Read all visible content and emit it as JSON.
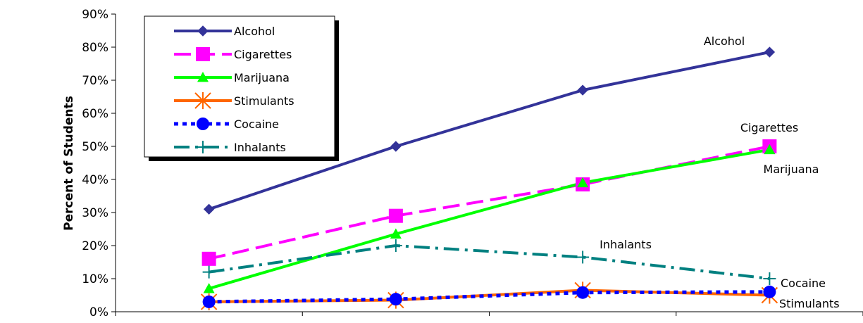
{
  "chart_data": {
    "type": "line",
    "ylabel": "Percent of Students",
    "xlabel": "",
    "ylim": [
      0,
      90
    ],
    "y_ticks": [
      "0%",
      "10%",
      "20%",
      "30%",
      "40%",
      "50%",
      "60%",
      "70%",
      "80%",
      "90%"
    ],
    "categories": [
      "",
      "",
      "",
      ""
    ],
    "grid": false,
    "legend_position": "top-left",
    "series": [
      {
        "name": "Alcohol",
        "values": [
          31,
          50,
          67,
          78.5
        ],
        "color": "#333399",
        "dash": "solid",
        "marker": "diamond",
        "label": "Alcohol"
      },
      {
        "name": "Cigarettes",
        "values": [
          16,
          29,
          38.5,
          50
        ],
        "color": "#FF00FF",
        "dash": "long-dash",
        "marker": "square",
        "label": "Cigarettes"
      },
      {
        "name": "Marijuana",
        "values": [
          7,
          23.5,
          39,
          49
        ],
        "color": "#00FF00",
        "dash": "solid",
        "marker": "triangle",
        "label": "Marijuana"
      },
      {
        "name": "Stimulants",
        "values": [
          3,
          3.5,
          6.5,
          5
        ],
        "color": "#FF6600",
        "dash": "solid",
        "marker": "asterisk",
        "label": "Stimulants"
      },
      {
        "name": "Cocaine",
        "values": [
          3,
          3.8,
          5.8,
          6
        ],
        "color": "#0000FF",
        "dash": "dotted",
        "marker": "circle",
        "label": "Cocaine"
      },
      {
        "name": "Inhalants",
        "values": [
          12,
          20,
          16.5,
          10
        ],
        "color": "#008080",
        "dash": "dash-dot",
        "marker": "plus",
        "label": "Inhalants"
      }
    ]
  }
}
